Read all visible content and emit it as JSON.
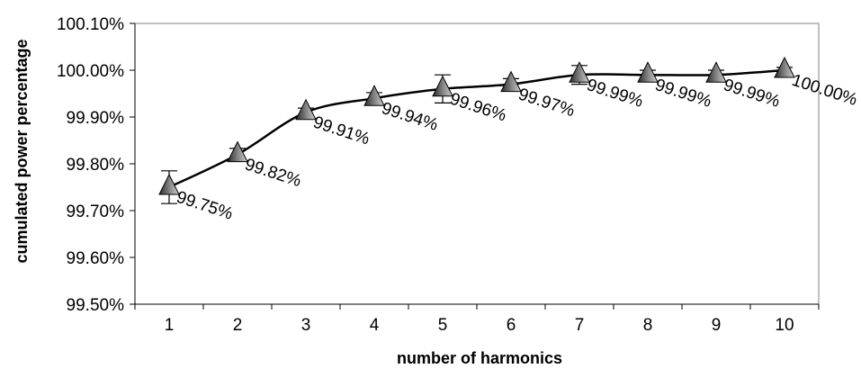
{
  "chart_data": {
    "type": "line",
    "xlabel": "number of harmonics",
    "ylabel": "cumulated power percentage",
    "categories": [
      "1",
      "2",
      "3",
      "4",
      "5",
      "6",
      "7",
      "8",
      "9",
      "10"
    ],
    "series": [
      {
        "values": [
          99.75,
          99.82,
          99.91,
          99.94,
          99.96,
          99.97,
          99.99,
          99.99,
          99.99,
          100.0
        ],
        "labels": [
          "99.75%",
          "99.82%",
          "99.91%",
          "99.94%",
          "99.96%",
          "99.97%",
          "99.99%",
          "99.99%",
          "99.99%",
          "100.00%"
        ],
        "error": [
          0.035,
          0.013,
          0.009,
          0.012,
          0.03,
          0.012,
          0.02,
          0.01,
          0.01,
          0.006
        ],
        "marker": "triangle"
      }
    ],
    "ylim": [
      99.5,
      100.1
    ],
    "yticks": [
      "99.50%",
      "99.60%",
      "99.70%",
      "99.80%",
      "99.90%",
      "100.00%",
      "100.10%"
    ],
    "grid": false,
    "legend": "none",
    "colors": {
      "line": "#000000",
      "marker_dark": "#2b2b2b",
      "marker_light": "#bdbdbd",
      "plot_bg": "#ffffff"
    }
  }
}
